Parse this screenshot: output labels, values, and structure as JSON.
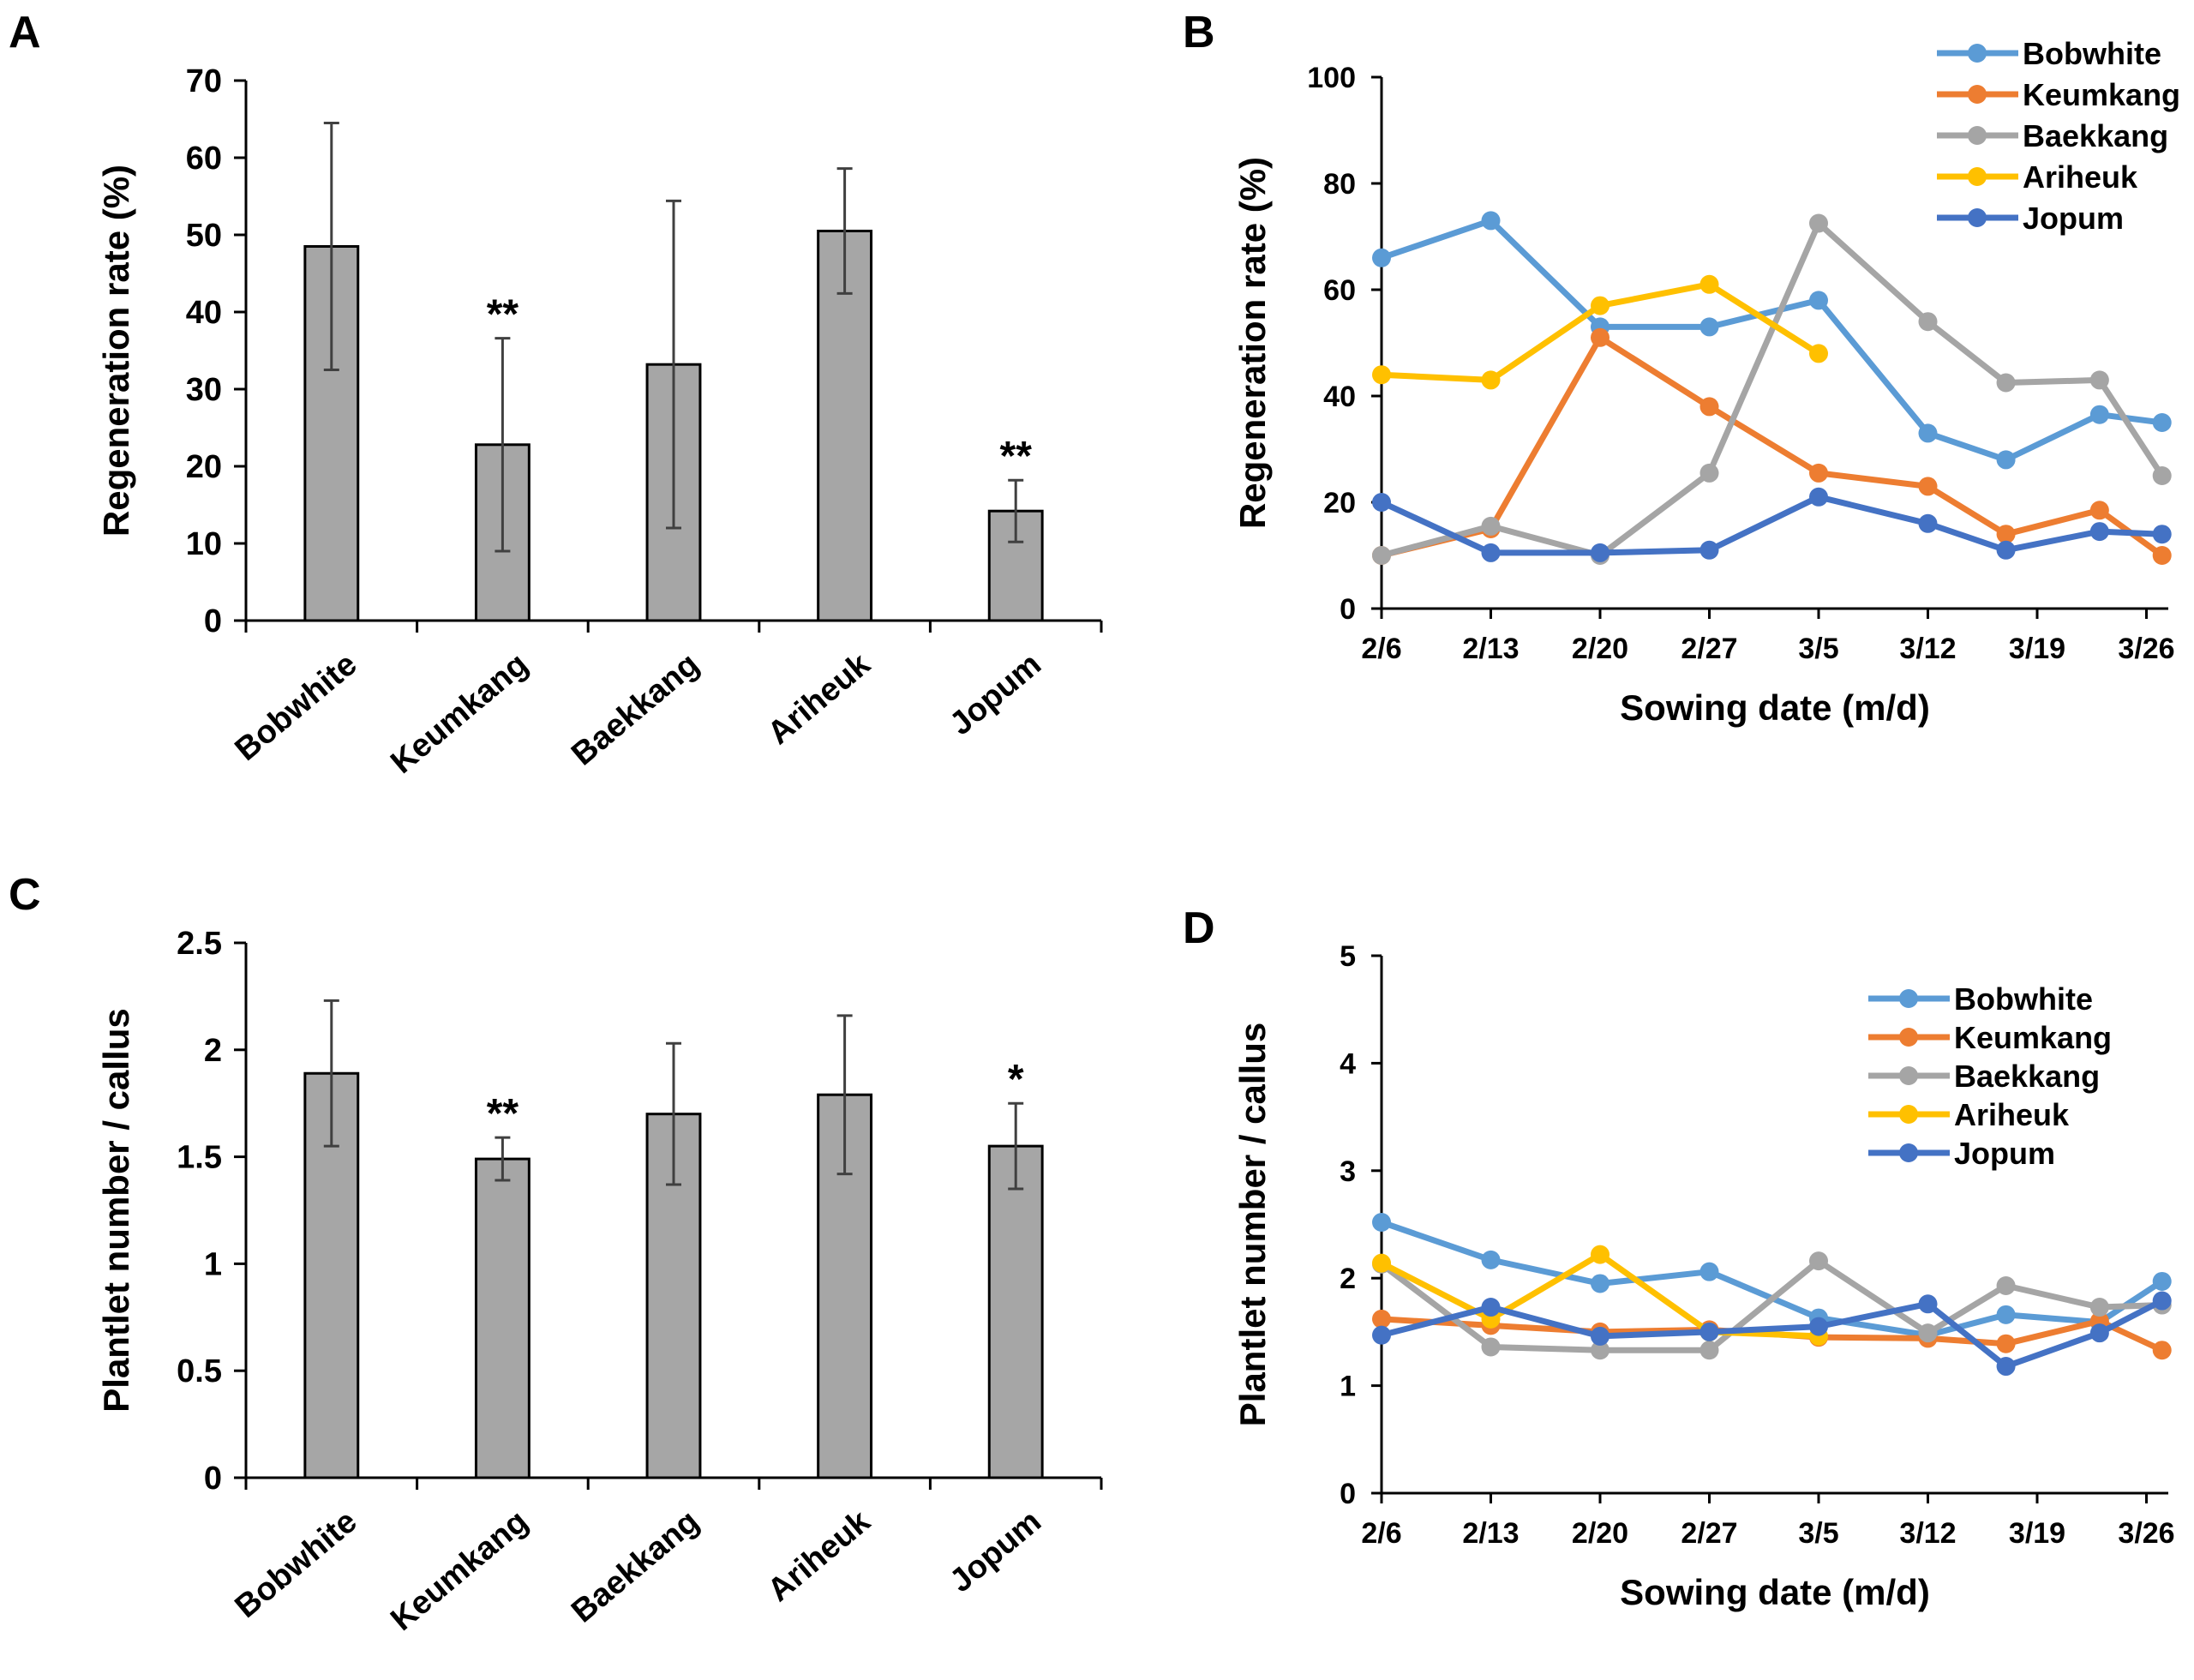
{
  "colors": {
    "bar_fill": "#a6a6a6",
    "axis": "#000000",
    "Bobwhite": "#5b9bd5",
    "Keumkang": "#ed7d31",
    "Baekkang": "#a5a5a5",
    "Ariheuk": "#ffc000",
    "Jopum": "#4472c4"
  },
  "panels": {
    "A": {
      "letter": "A"
    },
    "B": {
      "letter": "B"
    },
    "C": {
      "letter": "C"
    },
    "D": {
      "letter": "D"
    }
  },
  "chart_data": [
    {
      "panel": "A",
      "type": "bar",
      "ylabel": "Regeneration rate (%)",
      "xlabel": "",
      "ylim": [
        0,
        70
      ],
      "yticks": [
        "0",
        "10",
        "20",
        "30",
        "40",
        "50",
        "60",
        "70"
      ],
      "categories": [
        "Bobwhite",
        "Keumkang",
        "Baekkang",
        "Ariheuk",
        "Jopum"
      ],
      "values": [
        48.5,
        22.8,
        33.2,
        50.5,
        14.2
      ],
      "errors": [
        16,
        13.8,
        21.2,
        8.1,
        4
      ],
      "significance": [
        "",
        "**",
        "",
        "",
        "**"
      ],
      "grid": false
    },
    {
      "panel": "B",
      "type": "line",
      "ylabel": "Regeneration rate (%)",
      "xlabel": "Sowing date (m/d)",
      "ylim": [
        0,
        100
      ],
      "yticks": [
        "0",
        "20",
        "40",
        "60",
        "80",
        "100"
      ],
      "xticks": [
        "2/6",
        "2/13",
        "2/20",
        "2/27",
        "3/5",
        "3/12",
        "3/19",
        "3/26"
      ],
      "xlim_days": [
        0,
        51
      ],
      "x_note": "x values are days after 2/6",
      "legend_position": "top-right",
      "grid": false,
      "series": [
        {
          "name": "Bobwhite",
          "x": [
            0,
            7,
            14,
            21,
            28,
            35,
            40,
            46,
            50
          ],
          "y": [
            66,
            73,
            53,
            53,
            58,
            33,
            28,
            36.5,
            35
          ]
        },
        {
          "name": "Keumkang",
          "x": [
            0,
            7,
            14,
            21,
            28,
            35,
            40,
            46,
            50
          ],
          "y": [
            10,
            15,
            51,
            38,
            25.5,
            23,
            14,
            18.5,
            10
          ]
        },
        {
          "name": "Baekkang",
          "x": [
            0,
            7,
            14,
            21,
            28,
            35,
            40,
            46,
            50
          ],
          "y": [
            10,
            15.5,
            10,
            25.5,
            72.5,
            54,
            42.5,
            43,
            25
          ]
        },
        {
          "name": "Ariheuk",
          "x": [
            0,
            7,
            14,
            21,
            28
          ],
          "y": [
            44,
            43,
            57,
            61,
            48
          ]
        },
        {
          "name": "Jopum",
          "x": [
            0,
            7,
            14,
            21,
            28,
            35,
            40,
            46,
            50
          ],
          "y": [
            20,
            10.5,
            10.5,
            11,
            21,
            16,
            11,
            14.5,
            14
          ]
        }
      ]
    },
    {
      "panel": "C",
      "type": "bar",
      "ylabel": "Plantlet number / callus",
      "xlabel": "",
      "ylim": [
        0,
        2.5
      ],
      "yticks": [
        "0",
        "0.5",
        "1",
        "1.5",
        "2",
        "2.5"
      ],
      "categories": [
        "Bobwhite",
        "Keumkang",
        "Baekkang",
        "Ariheuk",
        "Jopum"
      ],
      "values": [
        1.89,
        1.49,
        1.7,
        1.79,
        1.55
      ],
      "errors": [
        0.34,
        0.1,
        0.33,
        0.37,
        0.2
      ],
      "significance": [
        "",
        "**",
        "",
        "",
        "*"
      ],
      "grid": false
    },
    {
      "panel": "D",
      "type": "line",
      "ylabel": "Plantlet number / callus",
      "xlabel": "Sowing date (m/d)",
      "ylim": [
        0,
        5
      ],
      "yticks": [
        "0",
        "1",
        "2",
        "3",
        "4",
        "5"
      ],
      "xticks": [
        "2/6",
        "2/13",
        "2/20",
        "2/27",
        "3/5",
        "3/12",
        "3/19",
        "3/26"
      ],
      "xlim_days": [
        0,
        51
      ],
      "x_note": "x values are days after 2/6",
      "legend_position": "top-right",
      "grid": false,
      "series": [
        {
          "name": "Bobwhite",
          "x": [
            0,
            7,
            14,
            21,
            28,
            35,
            40,
            46,
            50
          ],
          "y": [
            2.52,
            2.17,
            1.95,
            2.06,
            1.63,
            1.47,
            1.66,
            1.59,
            1.97
          ]
        },
        {
          "name": "Keumkang",
          "x": [
            0,
            7,
            14,
            21,
            28,
            35,
            40,
            46,
            50
          ],
          "y": [
            1.62,
            1.56,
            1.5,
            1.52,
            1.45,
            1.44,
            1.39,
            1.6,
            1.33
          ]
        },
        {
          "name": "Baekkang",
          "x": [
            0,
            7,
            14,
            21,
            28,
            35,
            40,
            46,
            50
          ],
          "y": [
            2.13,
            1.36,
            1.33,
            1.33,
            2.16,
            1.49,
            1.93,
            1.73,
            1.75
          ]
        },
        {
          "name": "Ariheuk",
          "x": [
            0,
            7,
            14,
            21,
            28
          ],
          "y": [
            2.14,
            1.62,
            2.22,
            1.5,
            1.46
          ]
        },
        {
          "name": "Jopum",
          "x": [
            0,
            7,
            14,
            21,
            28,
            35,
            40,
            46,
            50
          ],
          "y": [
            1.47,
            1.73,
            1.46,
            1.5,
            1.55,
            1.76,
            1.18,
            1.49,
            1.79
          ]
        }
      ]
    }
  ]
}
